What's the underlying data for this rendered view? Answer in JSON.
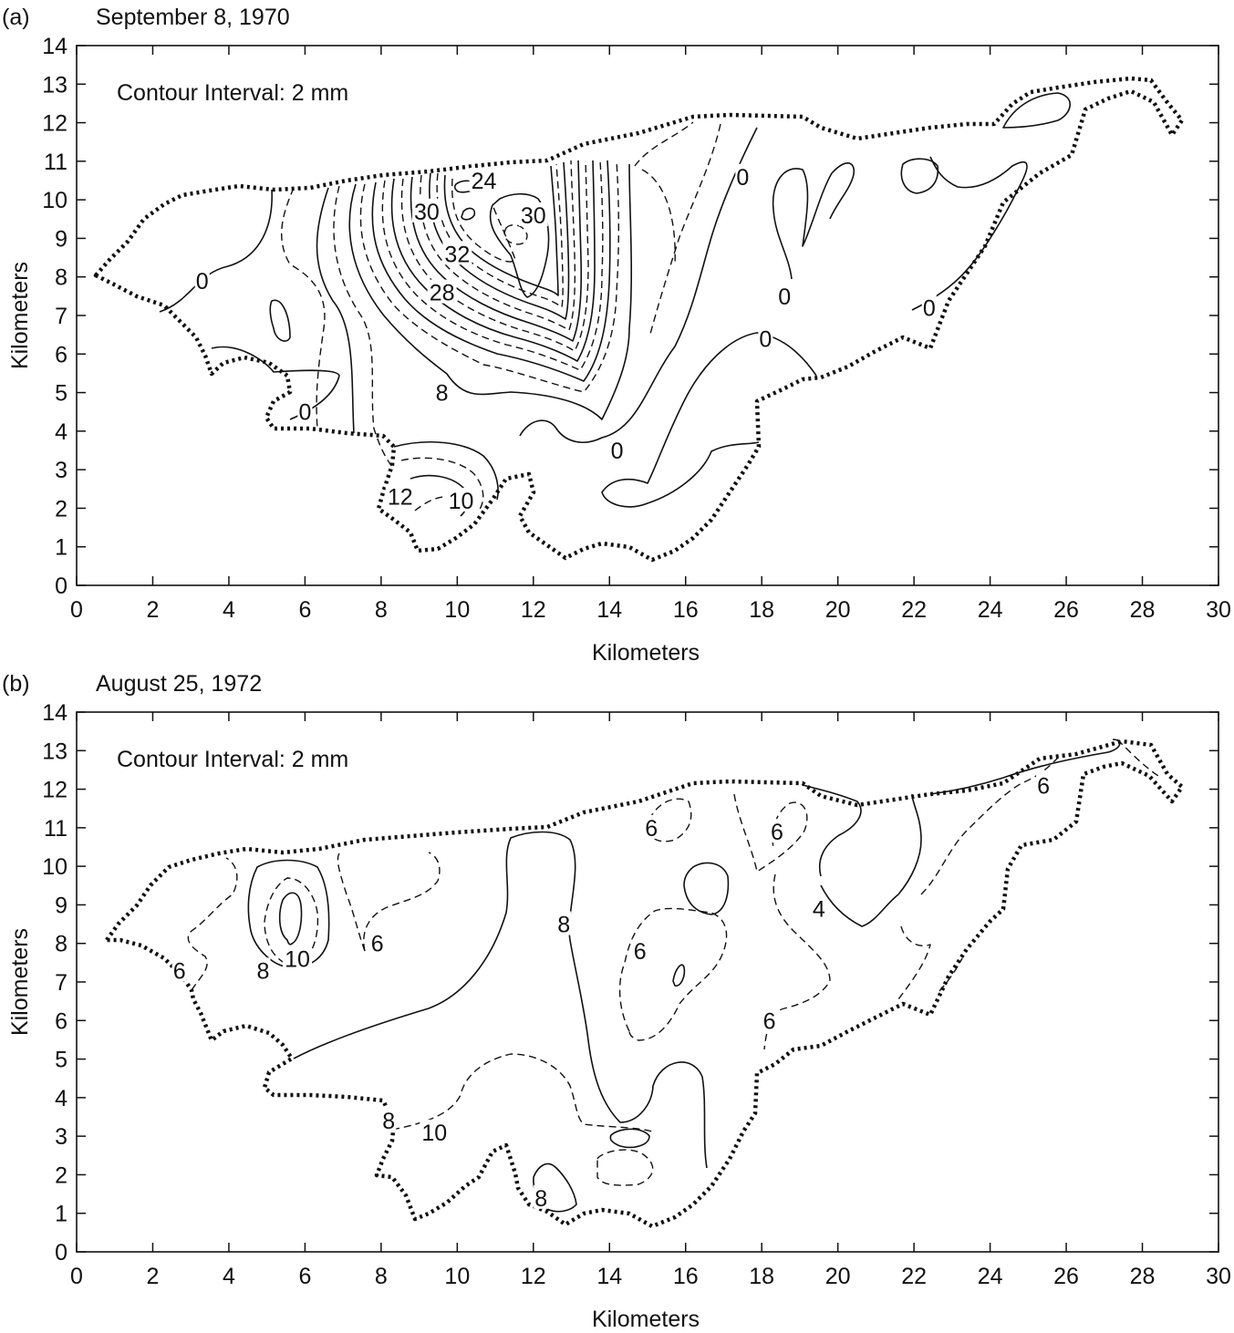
{
  "chart_data": [
    {
      "type": "contour",
      "panel_label": "(a)",
      "title": "September 8, 1970",
      "annotation": "Contour Interval: 2 mm",
      "xlabel": "Kilometers",
      "ylabel": "Kilometers",
      "xlim": [
        0,
        30
      ],
      "ylim": [
        0,
        14
      ],
      "xticks": [
        0,
        2,
        4,
        6,
        8,
        10,
        12,
        14,
        16,
        18,
        20,
        22,
        24,
        26,
        28,
        30
      ],
      "yticks": [
        0,
        1,
        2,
        3,
        4,
        5,
        6,
        7,
        8,
        9,
        10,
        11,
        12,
        13,
        14
      ],
      "contour_labels": [
        {
          "text": "0",
          "x": 3.3,
          "y": 7.9
        },
        {
          "text": "0",
          "x": 6.0,
          "y": 4.5
        },
        {
          "text": "30",
          "x": 9.2,
          "y": 9.7
        },
        {
          "text": "24",
          "x": 10.7,
          "y": 10.5
        },
        {
          "text": "30",
          "x": 12.0,
          "y": 9.6
        },
        {
          "text": "32",
          "x": 10.0,
          "y": 8.6
        },
        {
          "text": "28",
          "x": 9.6,
          "y": 7.6
        },
        {
          "text": "8",
          "x": 9.6,
          "y": 5.0
        },
        {
          "text": "12",
          "x": 8.5,
          "y": 2.3
        },
        {
          "text": "10",
          "x": 10.1,
          "y": 2.2
        },
        {
          "text": "0",
          "x": 14.2,
          "y": 3.5
        },
        {
          "text": "0",
          "x": 17.5,
          "y": 10.6
        },
        {
          "text": "0",
          "x": 18.6,
          "y": 7.5
        },
        {
          "text": "0",
          "x": 18.1,
          "y": 6.4
        },
        {
          "text": "0",
          "x": 22.4,
          "y": 7.2
        }
      ]
    },
    {
      "type": "contour",
      "panel_label": "(b)",
      "title": "August 25, 1972",
      "annotation": "Contour Interval: 2 mm",
      "xlabel": "Kilometers",
      "ylabel": "Kilometers",
      "xlim": [
        0,
        30
      ],
      "ylim": [
        0,
        14
      ],
      "xticks": [
        0,
        2,
        4,
        6,
        8,
        10,
        12,
        14,
        16,
        18,
        20,
        22,
        24,
        26,
        28,
        30
      ],
      "yticks": [
        0,
        1,
        2,
        3,
        4,
        5,
        6,
        7,
        8,
        9,
        10,
        11,
        12,
        13,
        14
      ],
      "contour_labels": [
        {
          "text": "6",
          "x": 2.7,
          "y": 7.3
        },
        {
          "text": "8",
          "x": 4.9,
          "y": 7.3
        },
        {
          "text": "10",
          "x": 5.8,
          "y": 7.6
        },
        {
          "text": "6",
          "x": 7.9,
          "y": 8.0
        },
        {
          "text": "8",
          "x": 12.8,
          "y": 8.5
        },
        {
          "text": "6",
          "x": 14.8,
          "y": 7.8
        },
        {
          "text": "6",
          "x": 15.1,
          "y": 11.0
        },
        {
          "text": "6",
          "x": 18.4,
          "y": 10.9
        },
        {
          "text": "4",
          "x": 19.5,
          "y": 8.9
        },
        {
          "text": "6",
          "x": 18.2,
          "y": 6.0
        },
        {
          "text": "6",
          "x": 25.4,
          "y": 12.1
        },
        {
          "text": "8",
          "x": 8.2,
          "y": 3.4
        },
        {
          "text": "10",
          "x": 9.4,
          "y": 3.1
        },
        {
          "text": "8",
          "x": 12.2,
          "y": 1.4
        }
      ]
    }
  ]
}
